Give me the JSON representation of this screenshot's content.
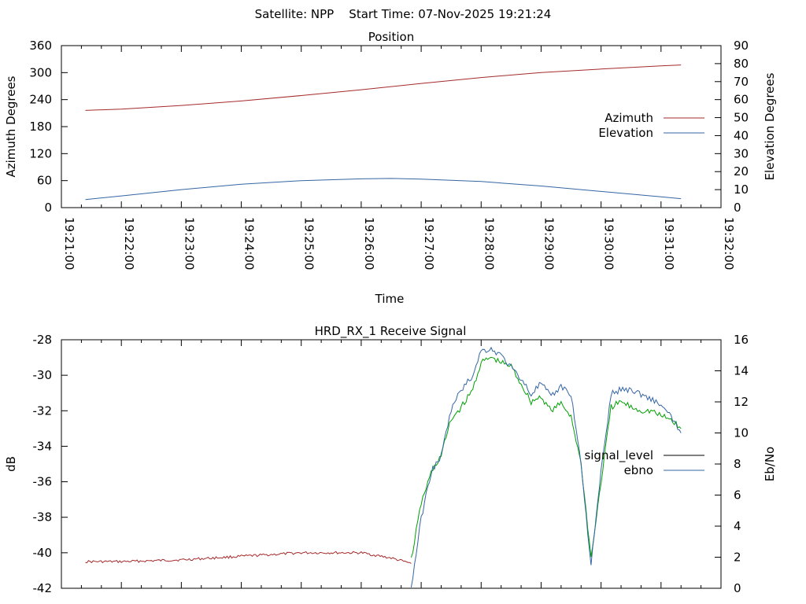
{
  "suptitle": "Satellite: NPP    Start Time: 07-Nov-2025 19:21:24",
  "chart_data": [
    {
      "type": "line",
      "title": "Position",
      "xlabel": "Time",
      "ylabel": "Azimuth Degrees",
      "y2label": "Elevation Degrees",
      "xlim": [
        "19:21:00",
        "19:32:00"
      ],
      "ylim": [
        0,
        360
      ],
      "y2lim": [
        0,
        90
      ],
      "x_tick_labels": [
        "19:21:00",
        "19:22:00",
        "19:23:00",
        "19:24:00",
        "19:25:00",
        "19:26:00",
        "19:27:00",
        "19:28:00",
        "19:29:00",
        "19:30:00",
        "19:31:00",
        "19:32:00"
      ],
      "y_ticks": [
        0,
        60,
        120,
        180,
        240,
        300,
        360
      ],
      "y2_ticks": [
        0,
        10,
        20,
        30,
        40,
        50,
        60,
        70,
        80,
        90
      ],
      "legend": "right",
      "series": [
        {
          "name": "Azimuth",
          "axis": "y",
          "color": "#a52a2a",
          "points": [
            [
              "19:21:24",
              216
            ],
            [
              "19:22:00",
              219
            ],
            [
              "19:23:00",
              227
            ],
            [
              "19:24:00",
              237
            ],
            [
              "19:25:00",
              249
            ],
            [
              "19:26:00",
              262
            ],
            [
              "19:27:00",
              276
            ],
            [
              "19:28:00",
              289
            ],
            [
              "19:29:00",
              300
            ],
            [
              "19:30:00",
              308
            ],
            [
              "19:31:00",
              315
            ],
            [
              "19:31:20",
              317
            ]
          ]
        },
        {
          "name": "Elevation",
          "axis": "y2",
          "color": "#3465a4",
          "points": [
            [
              "19:21:24",
              4.5
            ],
            [
              "19:22:00",
              6.5
            ],
            [
              "19:23:00",
              10
            ],
            [
              "19:24:00",
              13
            ],
            [
              "19:25:00",
              15
            ],
            [
              "19:26:00",
              16
            ],
            [
              "19:26:30",
              16.2
            ],
            [
              "19:27:00",
              15.8
            ],
            [
              "19:28:00",
              14.5
            ],
            [
              "19:29:00",
              12
            ],
            [
              "19:30:00",
              9
            ],
            [
              "19:31:00",
              6
            ],
            [
              "19:31:20",
              5
            ]
          ]
        }
      ]
    },
    {
      "type": "line",
      "title": "HRD_RX_1 Receive Signal",
      "xlabel": "",
      "ylabel": "dB",
      "y2label": "Eb/No",
      "xlim": [
        "19:21:00",
        "19:32:00"
      ],
      "ylim": [
        -42,
        -28
      ],
      "y2lim": [
        0,
        16
      ],
      "y_ticks": [
        -42,
        -40,
        -38,
        -36,
        -34,
        -32,
        -30,
        -28
      ],
      "y2_ticks": [
        0,
        2,
        4,
        6,
        8,
        10,
        12,
        14,
        16
      ],
      "legend": "right",
      "legend_entries": [
        {
          "name": "signal_level",
          "color": "#000000"
        },
        {
          "name": "ebno",
          "color": "#3465a4"
        }
      ],
      "series": [
        {
          "name": "",
          "axis": "y",
          "color": "#a52a2a",
          "points": [
            [
              "19:21:24",
              -40.5
            ],
            [
              "19:22:00",
              -40.5
            ],
            [
              "19:23:00",
              -40.4
            ],
            [
              "19:24:00",
              -40.2
            ],
            [
              "19:25:00",
              -40.0
            ],
            [
              "19:26:00",
              -40.0
            ],
            [
              "19:26:30",
              -40.3
            ],
            [
              "19:26:50",
              -40.6
            ]
          ]
        },
        {
          "name": "",
          "axis": "y",
          "color": "#00a000",
          "points": [
            [
              "19:26:50",
              -40.4
            ],
            [
              "19:27:00",
              -37.2
            ],
            [
              "19:27:10",
              -35.5
            ],
            [
              "19:27:20",
              -34.5
            ],
            [
              "19:27:30",
              -32.5
            ],
            [
              "19:27:40",
              -31.8
            ],
            [
              "19:27:50",
              -31.0
            ],
            [
              "19:28:00",
              -29.3
            ],
            [
              "19:28:10",
              -29.0
            ],
            [
              "19:28:20",
              -29.3
            ],
            [
              "19:28:30",
              -29.5
            ],
            [
              "19:28:40",
              -30.5
            ],
            [
              "19:28:50",
              -31.5
            ],
            [
              "19:29:00",
              -31.2
            ],
            [
              "19:29:10",
              -32.0
            ],
            [
              "19:29:20",
              -31.6
            ],
            [
              "19:29:30",
              -32.3
            ],
            [
              "19:29:40",
              -35.0
            ],
            [
              "19:29:50",
              -40.3
            ],
            [
              "19:30:00",
              -36.0
            ],
            [
              "19:30:10",
              -31.8
            ],
            [
              "19:30:20",
              -31.5
            ],
            [
              "19:30:30",
              -31.8
            ],
            [
              "19:30:40",
              -32.0
            ],
            [
              "19:30:50",
              -32.0
            ],
            [
              "19:31:00",
              -32.3
            ],
            [
              "19:31:10",
              -32.5
            ],
            [
              "19:31:20",
              -33.0
            ]
          ]
        },
        {
          "name": "",
          "axis": "y2",
          "color": "#3465a4",
          "points": [
            [
              "19:26:50",
              0
            ],
            [
              "19:27:00",
              4.5
            ],
            [
              "19:27:10",
              7.5
            ],
            [
              "19:27:20",
              8.5
            ],
            [
              "19:27:30",
              11.5
            ],
            [
              "19:27:40",
              12.8
            ],
            [
              "19:27:50",
              13.5
            ],
            [
              "19:28:00",
              15.3
            ],
            [
              "19:28:10",
              15.4
            ],
            [
              "19:28:20",
              15.0
            ],
            [
              "19:28:30",
              14.2
            ],
            [
              "19:28:40",
              13.5
            ],
            [
              "19:28:50",
              12.5
            ],
            [
              "19:29:00",
              13.2
            ],
            [
              "19:29:10",
              12.3
            ],
            [
              "19:29:20",
              13.0
            ],
            [
              "19:29:30",
              12.5
            ],
            [
              "19:29:40",
              8.0
            ],
            [
              "19:29:50",
              1.5
            ],
            [
              "19:30:00",
              7.5
            ],
            [
              "19:30:10",
              12.5
            ],
            [
              "19:30:20",
              12.8
            ],
            [
              "19:30:30",
              12.8
            ],
            [
              "19:30:40",
              12.5
            ],
            [
              "19:30:50",
              12.2
            ],
            [
              "19:31:00",
              11.8
            ],
            [
              "19:31:10",
              11.0
            ],
            [
              "19:31:20",
              10.0
            ]
          ]
        }
      ]
    }
  ]
}
